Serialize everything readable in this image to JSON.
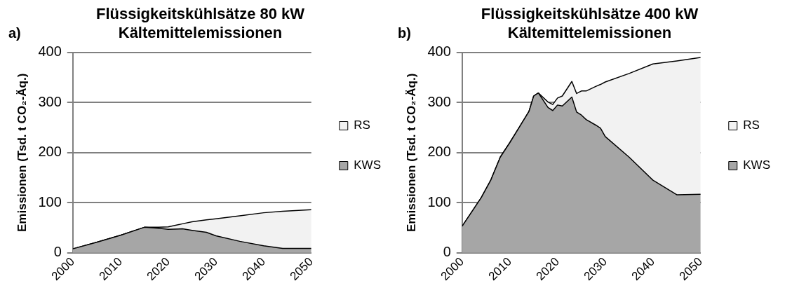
{
  "chart_data": [
    {
      "type": "area",
      "title": "Flüssigkeitskühlsätze 80 kW\nKältemittelemissionen",
      "ylabel": "Emissionen (Tsd. t CO₂-Äq.)",
      "annotations": [
        "a)"
      ],
      "stacked": true,
      "legend": "right",
      "grid": "y",
      "x": [
        2000,
        2005,
        2010,
        2015,
        2018,
        2020,
        2023,
        2025,
        2028,
        2030,
        2035,
        2040,
        2044,
        2050
      ],
      "series": [
        {
          "name": "KWS",
          "color": "#a6a6a6",
          "values": [
            8,
            21,
            35,
            51,
            49,
            47,
            48,
            45,
            41,
            34,
            23,
            14,
            9,
            9
          ]
        },
        {
          "name": "RS",
          "color": "#f2f2f2",
          "values": [
            0,
            0,
            0,
            0,
            2,
            5,
            10,
            17,
            25,
            34,
            51,
            66,
            74,
            77
          ]
        }
      ],
      "xlim": [
        2000,
        2050
      ],
      "xticks": [
        2000,
        2010,
        2020,
        2030,
        2040,
        2050
      ],
      "ylim": [
        0,
        400
      ],
      "yticks": [
        0,
        100,
        200,
        300,
        400
      ]
    },
    {
      "type": "area",
      "title": "Flüssigkeitskühlsätze 400 kW\nKältemittelemissionen",
      "ylabel": "Emissionen (Tsd. t CO₂-Äq.)",
      "annotations": [
        "b)"
      ],
      "stacked": true,
      "legend": "right",
      "grid": "y",
      "x": [
        2000,
        2004,
        2006,
        2008,
        2010,
        2012,
        2014,
        2015,
        2016,
        2018,
        2019,
        2020,
        2021,
        2023,
        2024,
        2025,
        2026,
        2028,
        2029,
        2030,
        2035,
        2040,
        2045,
        2050
      ],
      "series": [
        {
          "name": "KWS",
          "color": "#a6a6a6",
          "values": [
            53,
            110,
            145,
            191,
            220,
            251,
            282,
            313,
            319,
            290,
            284,
            295,
            293,
            311,
            281,
            275,
            266,
            255,
            249,
            232,
            191,
            145,
            116,
            117
          ]
        },
        {
          "name": "RS",
          "color": "#f2f2f2",
          "values": [
            0,
            0,
            0,
            0,
            0,
            0,
            0,
            0,
            0,
            11,
            12,
            14,
            20,
            31,
            37,
            48,
            57,
            77,
            87,
            109,
            167,
            232,
            267,
            273
          ]
        }
      ],
      "xlim": [
        2000,
        2050
      ],
      "xticks": [
        2000,
        2010,
        2020,
        2030,
        2040,
        2050
      ],
      "ylim": [
        0,
        400
      ],
      "yticks": [
        0,
        100,
        200,
        300,
        400
      ]
    }
  ]
}
